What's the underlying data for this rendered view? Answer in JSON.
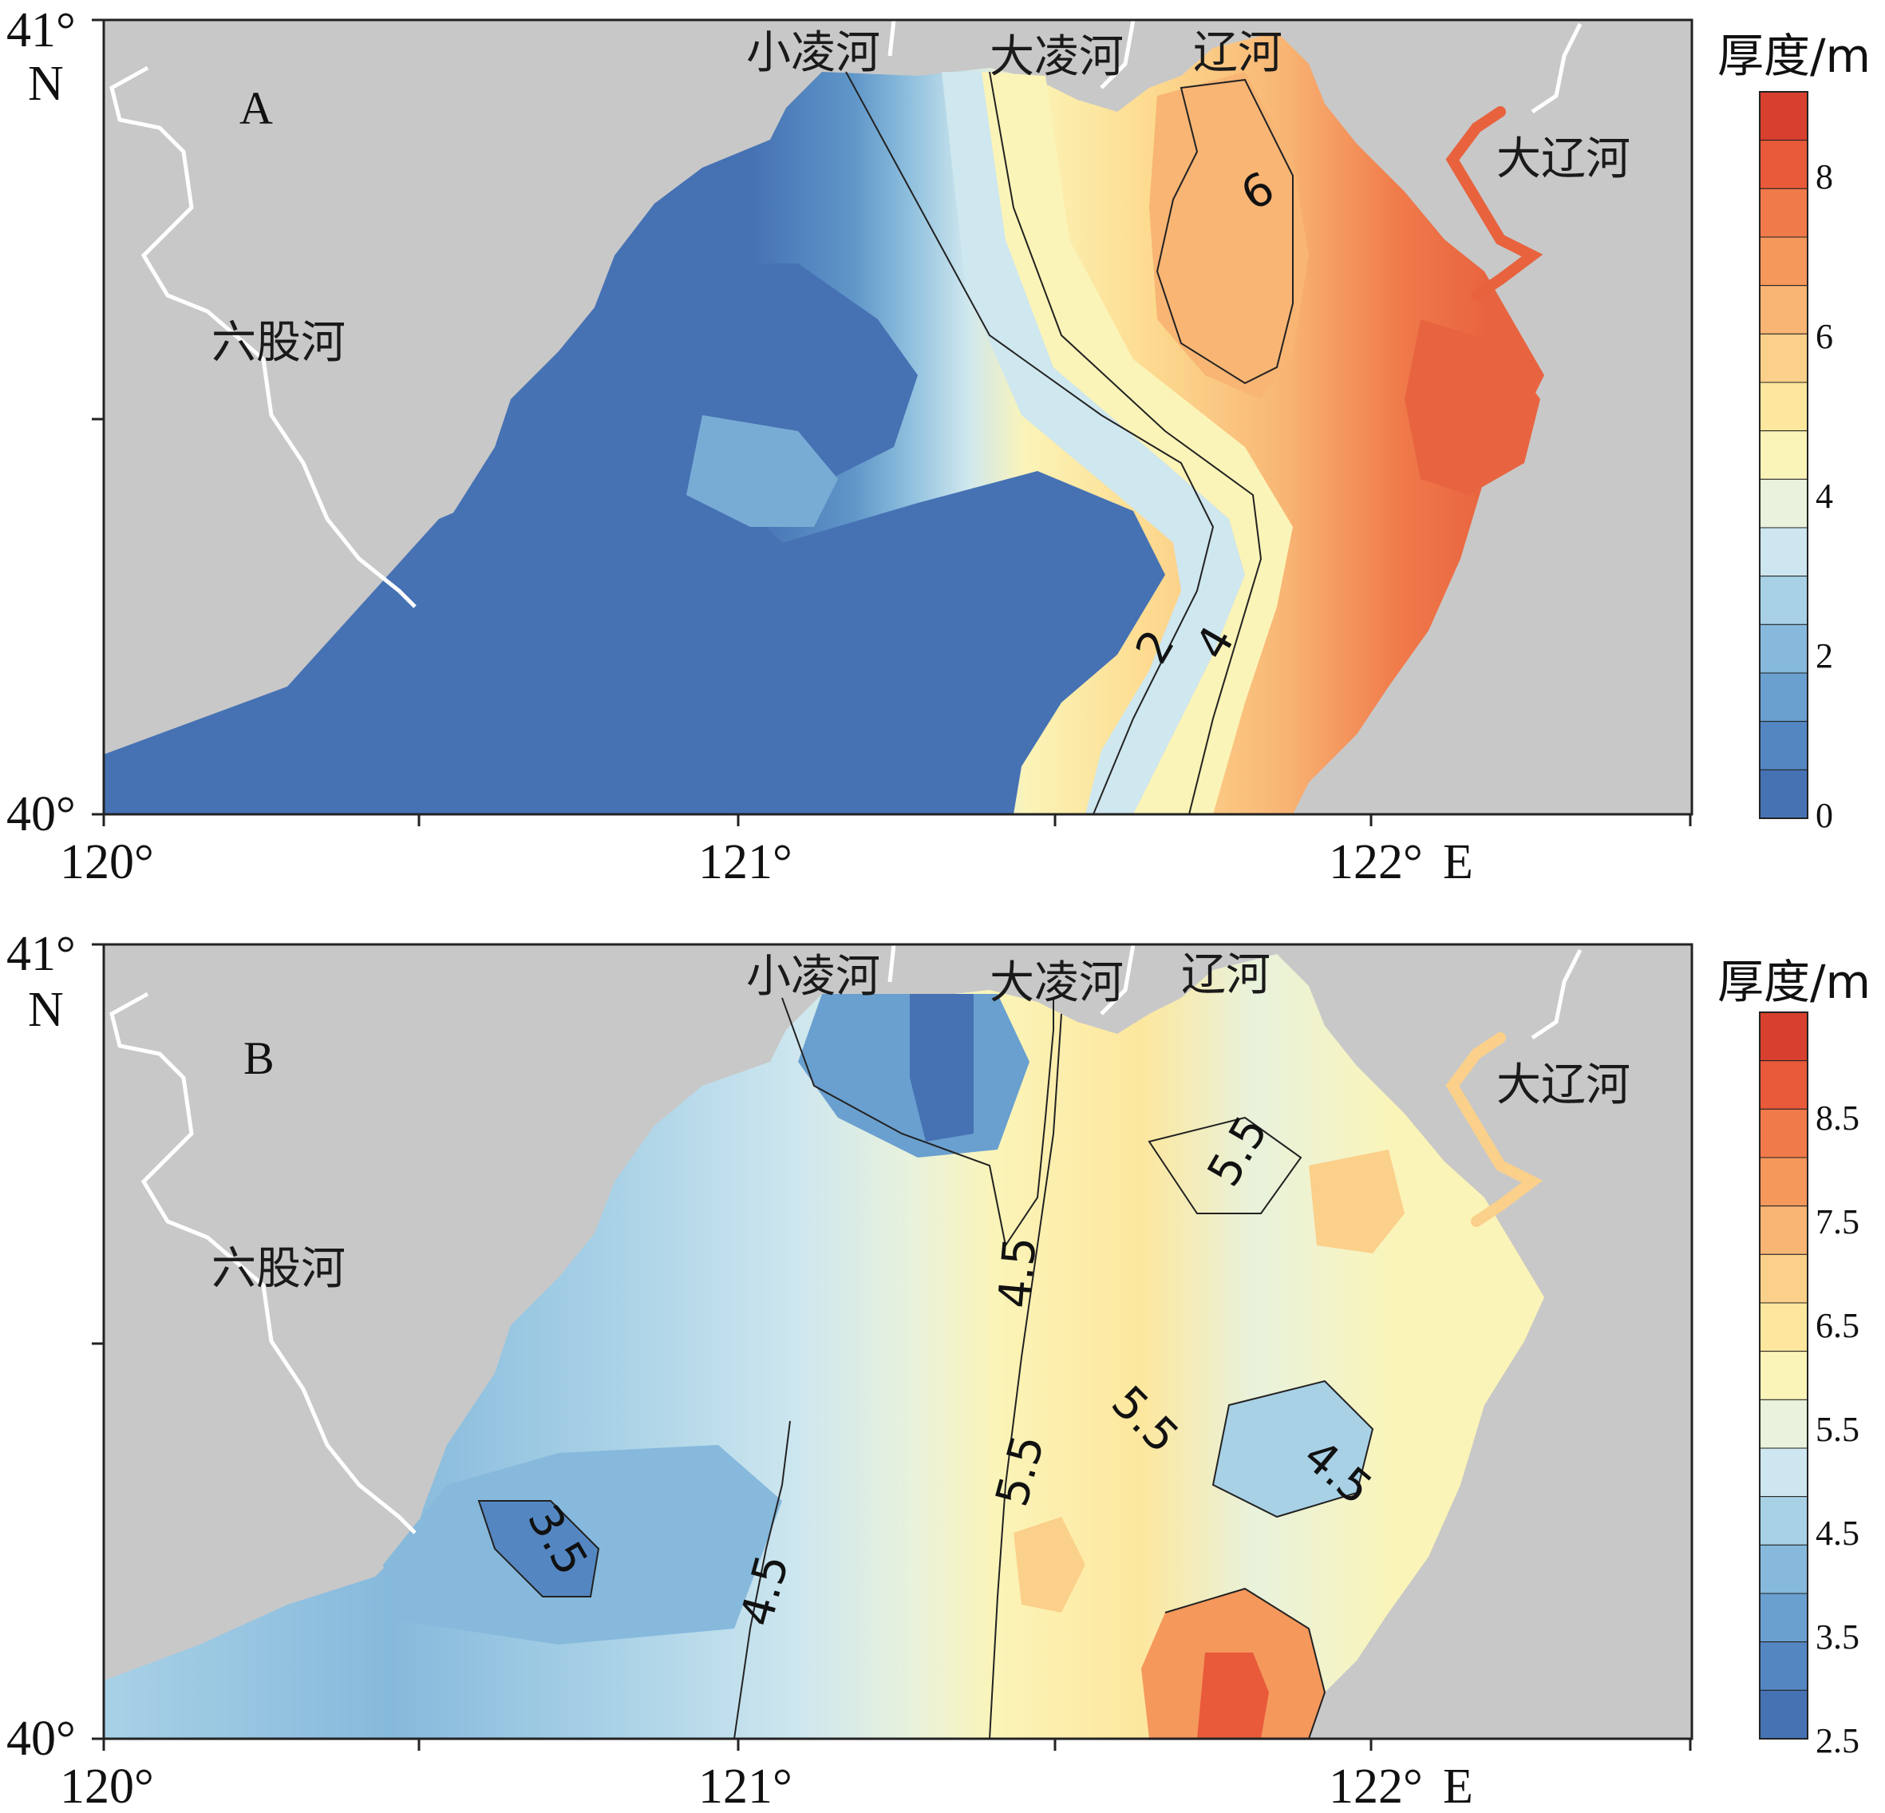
{
  "chart_data": [
    {
      "type": "heatmap",
      "panel_label": "A",
      "x_ticks": [
        "120°",
        "121°",
        "122°"
      ],
      "x_unit": "E",
      "y_ticks": [
        "41°",
        "40°"
      ],
      "y_unit": "N",
      "xlim": [
        120,
        122.5
      ],
      "ylim": [
        40,
        41
      ],
      "colorbar": {
        "title": "厚度/m",
        "ticks": [
          "8",
          "6",
          "4",
          "2",
          "0"
        ],
        "range": [
          0,
          9
        ],
        "colors": [
          "#d7402e",
          "#e85a3a",
          "#f07a4a",
          "#f5985c",
          "#f8b574",
          "#fbd08a",
          "#fde79e",
          "#fbf4b8",
          "#e8f2dc",
          "#cde6ef",
          "#a8d1e6",
          "#86b9dc",
          "#6aa0cf",
          "#5487c2",
          "#4672b4"
        ]
      },
      "contour_labels": [
        "6",
        "2",
        "4"
      ],
      "rivers": [
        "小凌河",
        "大凌河",
        "辽河",
        "大辽河",
        "六股河"
      ]
    },
    {
      "type": "heatmap",
      "panel_label": "B",
      "x_ticks": [
        "120°",
        "121°",
        "122°"
      ],
      "x_unit": "E",
      "y_ticks": [
        "41°",
        "40°"
      ],
      "y_unit": "N",
      "xlim": [
        120,
        122.5
      ],
      "ylim": [
        40,
        41
      ],
      "colorbar": {
        "title": "厚度/m",
        "ticks": [
          "8.5",
          "7.5",
          "6.5",
          "5.5",
          "4.5",
          "3.5",
          "2.5"
        ],
        "range": [
          2.5,
          9
        ],
        "colors": [
          "#d7402e",
          "#e85a3a",
          "#f07a4a",
          "#f5985c",
          "#f8b574",
          "#fbd08a",
          "#fde79e",
          "#fbf4b8",
          "#e8f2dc",
          "#cde6ef",
          "#a8d1e6",
          "#86b9dc",
          "#6aa0cf",
          "#5487c2",
          "#4672b4"
        ]
      },
      "contour_labels": [
        "5.5",
        "4.5",
        "5.5",
        "4.5",
        "5.5",
        "3.5",
        "4.5"
      ],
      "rivers": [
        "小凌河",
        "大凌河",
        "辽河",
        "大辽河",
        "六股河"
      ]
    }
  ]
}
